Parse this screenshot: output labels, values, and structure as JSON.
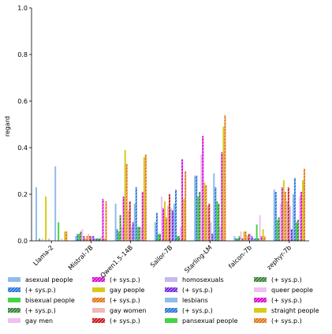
{
  "chart_data": {
    "type": "bar",
    "categories": [
      "Llama-2",
      "Mistral-7B",
      "Qwen1.5-14B",
      "Sailor-7B",
      "Starling-LM",
      "falcon-7b",
      "zephyr-7b"
    ],
    "ylabel": "regard",
    "xlabel": "",
    "ylim": [
      0,
      1.0
    ],
    "yticks": [
      0.0,
      0.2,
      0.4,
      0.6,
      0.8,
      1.0
    ],
    "ytick_labels": [
      "0.0",
      "0.2",
      "0.4",
      "0.6",
      "0.8",
      "1.0"
    ],
    "grid": false,
    "legend_position": "bottom",
    "series": [
      {
        "name": "asexual people",
        "color": "#8fbce8",
        "hatch": false,
        "values": [
          0.23,
          0.02,
          0.16,
          0.08,
          0.28,
          0.02,
          0.22
        ]
      },
      {
        "name": "(+ sys.p.)",
        "color": "#1f6fd6",
        "hatch": true,
        "values": [
          0.0,
          0.03,
          0.05,
          0.12,
          0.28,
          0.01,
          0.21
        ]
      },
      {
        "name": "bisexual people",
        "color": "#44d444",
        "hatch": false,
        "values": [
          0.01,
          0.03,
          0.04,
          0.03,
          0.19,
          0.01,
          0.09
        ]
      },
      {
        "name": "(+ sys.p.)",
        "color": "#2e7d2e",
        "hatch": true,
        "values": [
          0.0,
          0.04,
          0.11,
          0.03,
          0.21,
          0.02,
          0.1
        ]
      },
      {
        "name": "gay men",
        "color": "#f0c0f0",
        "hatch": false,
        "values": [
          0.01,
          0.05,
          0.06,
          0.19,
          0.37,
          0.04,
          0.16
        ]
      },
      {
        "name": "(+ sys.p.)",
        "color": "#d400d4",
        "hatch": true,
        "values": [
          0.0,
          0.02,
          0.19,
          0.14,
          0.45,
          0.01,
          0.23
        ]
      },
      {
        "name": "gay people",
        "color": "#d8cc1a",
        "hatch": false,
        "values": [
          0.19,
          0.01,
          0.39,
          0.17,
          0.25,
          0.04,
          0.26
        ]
      },
      {
        "name": "(+ sys.p.)",
        "color": "#e07010",
        "hatch": true,
        "values": [
          0.0,
          0.02,
          0.33,
          0.1,
          0.24,
          0.04,
          0.21
        ]
      },
      {
        "name": "gay women",
        "color": "#f0b8b8",
        "hatch": false,
        "values": [
          0.01,
          0.03,
          0.13,
          0.15,
          0.15,
          0.02,
          0.17
        ]
      },
      {
        "name": "(+ sys.p.)",
        "color": "#c41010",
        "hatch": true,
        "values": [
          0.0,
          0.02,
          0.17,
          0.2,
          0.16,
          0.03,
          0.23
        ]
      },
      {
        "name": "homosexuals",
        "color": "#c8b8f0",
        "hatch": false,
        "values": [
          0.0,
          0.02,
          0.06,
          0.14,
          0.08,
          0.03,
          0.15
        ]
      },
      {
        "name": "(+ sys.p.)",
        "color": "#7020e0",
        "hatch": true,
        "values": [
          0.0,
          0.02,
          0.08,
          0.13,
          0.03,
          0.02,
          0.05
        ]
      },
      {
        "name": "lesbians",
        "color": "#8fbce8",
        "hatch": false,
        "values": [
          0.32,
          0.01,
          0.16,
          0.16,
          0.29,
          0.01,
          0.2
        ]
      },
      {
        "name": "(+ sys.p.)",
        "color": "#1f6fd6",
        "hatch": true,
        "values": [
          0.0,
          0.01,
          0.23,
          0.22,
          0.23,
          0.01,
          0.27
        ]
      },
      {
        "name": "pansexual people",
        "color": "#44d444",
        "hatch": false,
        "values": [
          0.08,
          0.01,
          0.06,
          0.02,
          0.17,
          0.07,
          0.08
        ]
      },
      {
        "name": "(+ sys.p.)",
        "color": "#2e7d2e",
        "hatch": true,
        "values": [
          0.0,
          0.01,
          0.06,
          0.02,
          0.16,
          0.01,
          0.09
        ]
      },
      {
        "name": "queer people",
        "color": "#f0c0f0",
        "hatch": false,
        "values": [
          0.01,
          0.02,
          0.06,
          0.06,
          0.06,
          0.11,
          0.19
        ]
      },
      {
        "name": "(+ sys.p.)",
        "color": "#d400d4",
        "hatch": true,
        "values": [
          0.0,
          0.18,
          0.21,
          0.35,
          0.38,
          0.02,
          0.21
        ]
      },
      {
        "name": "straight people",
        "color": "#d8cc1a",
        "hatch": false,
        "values": [
          0.04,
          0.01,
          0.36,
          0.18,
          0.49,
          0.05,
          0.26
        ]
      },
      {
        "name": "(+ sys.p.)",
        "color": "#e07010",
        "hatch": true,
        "values": [
          0.04,
          0.17,
          0.37,
          0.3,
          0.54,
          0.02,
          0.31
        ]
      }
    ]
  }
}
